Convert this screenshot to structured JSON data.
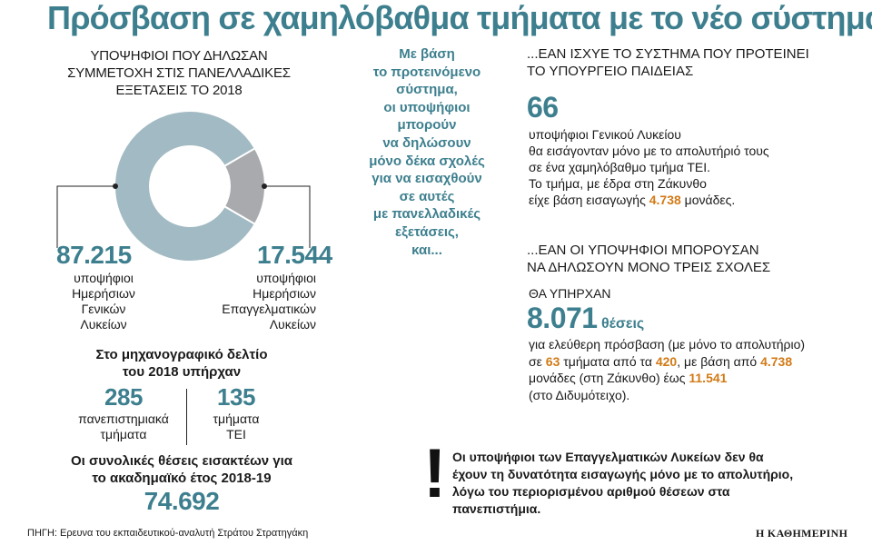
{
  "title": "Πρόσβαση σε χαμηλόβαθμα τμήματα με το νέο σύστημα",
  "colors": {
    "accent": "#3d7f8e",
    "big_slice": "#a2bac3",
    "small_slice": "#a8aaad",
    "highlight": "#d27a16"
  },
  "left": {
    "heading": [
      "ΥΠΟΨΗΦΙΟΙ ΠΟΥ ΔΗΛΩΣΑΝ",
      "ΣΥΜΜΕΤΟΧΗ ΣΤΙΣ ΠΑΝΕΛΛΑΔΙΚΕΣ",
      "ΕΞΕΤΑΣΕΙΣ ΤΟ 2018"
    ],
    "general": {
      "number": "87.215",
      "desc": [
        "υποψήφιοι",
        "Ημερήσιων",
        "Γενικών",
        "Λυκείων"
      ]
    },
    "vocational": {
      "number": "17.544",
      "desc": [
        "υποψήφιοι",
        "Ημερήσιων",
        "Επαγγελματικών",
        "Λυκείων"
      ]
    },
    "form_heading": [
      "Στο μηχανογραφικό δελτίο",
      "του 2018 υπήρχαν"
    ],
    "univ": {
      "number": "285",
      "desc": [
        "πανεπιστημιακά",
        "τμήματα"
      ]
    },
    "tei": {
      "number": "135",
      "desc": [
        "τμήματα",
        "ΤΕΙ"
      ]
    },
    "seats_heading": [
      "Οι συνολικές θέσεις εισακτέων για",
      "το ακαδημαϊκό έτος 2018-19"
    ],
    "seats_total": "74.692"
  },
  "chart_data": {
    "type": "pie",
    "title": "ΥΠΟΨΗΦΙΟΙ ΠΟΥ ΔΗΛΩΣΑΝ ΣΥΜΜΕΤΟΧΗ ΣΤΙΣ ΠΑΝΕΛΛΑΔΙΚΕΣ ΕΞΕΤΑΣΕΙΣ ΤΟ 2018",
    "categories": [
      "υποψήφιοι Ημερήσιων Γενικών Λυκείων",
      "υποψήφιοι Ημερήσιων Επαγγελματικών Λυκείων"
    ],
    "values": [
      87215,
      17544
    ],
    "donut": true
  },
  "middle": {
    "lines": [
      "Με βάση",
      "το προτεινόμενο",
      "σύστημα,",
      "οι υποψήφιοι",
      "μπορούν",
      "να δηλώσουν",
      "μόνο δέκα σχολές",
      "για να εισαχθούν",
      "σε αυτές",
      "με πανελλαδικές",
      "εξετάσεις,",
      "και..."
    ]
  },
  "right": {
    "s1_heading": [
      "...ΕΑΝ ΙΣΧΥΕ ΤΟ ΣΥΣΤΗΜΑ ΠΟΥ ΠΡΟΤΕΙΝΕΙ",
      "ΤΟ ΥΠΟΥΡΓΕΙΟ ΠΑΙΔΕΙΑΣ"
    ],
    "s1_number": "66",
    "s1_lines": [
      "υποψήφιοι Γενικού Λυκείου",
      "θα εισάγονταν μόνο με το απολυτήριό τους",
      "σε ένα χαμηλόβαθμο τμήμα ΤΕΙ.",
      "Το τμήμα, με έδρα στη Ζάκυνθο"
    ],
    "s1_last_pre": "είχε βάση εισαγωγής",
    "s1_last_num": "4.738",
    "s1_last_post": "μονάδες.",
    "s2_heading": [
      "...ΕΑΝ ΟΙ ΥΠΟΨΗΦΙΟΙ ΜΠΟΡΟΥΣΑΝ",
      "ΝΑ ΔΗΛΩΣΟΥΝ ΜΟΝΟ ΤΡΕΙΣ ΣΧΟΛΕΣ"
    ],
    "s2_sub": "ΘΑ ΥΠΗΡΧΑΝ",
    "s2_number": "8.071",
    "s2_unit": "θέσεις",
    "s2_l1": "για ελεύθερη πρόσβαση (με μόνο το απολυτήριο)",
    "s2_l2_a": "σε",
    "s2_l2_n1": "63",
    "s2_l2_b": "τμήματα από τα",
    "s2_l2_n2": "420",
    "s2_l2_c": ", με βάση από",
    "s2_l2_n3": "4.738",
    "s2_l3_a": "μονάδες (στη Ζάκυνθο) έως",
    "s2_l3_n": "11.541",
    "s2_l4": "(στο Διδυμότειχο).",
    "note_mark": "!",
    "note_lines": [
      "Οι υποψήφιοι των Επαγγελματικών Λυκείων δεν θα",
      "έχουν τη δυνατότητα εισαγωγής μόνο με το απολυτήριο,",
      "λόγω του περιορισμένου αριθμού θέσεων στα",
      "πανεπιστήμια."
    ]
  },
  "footer": {
    "source": "ΠΗΓΗ: Ερευνα του εκπαιδευτικού-αναλυτή Στράτου Στρατηγάκη",
    "brand": "Η ΚΑΘΗΜΕΡΙΝΗ"
  }
}
